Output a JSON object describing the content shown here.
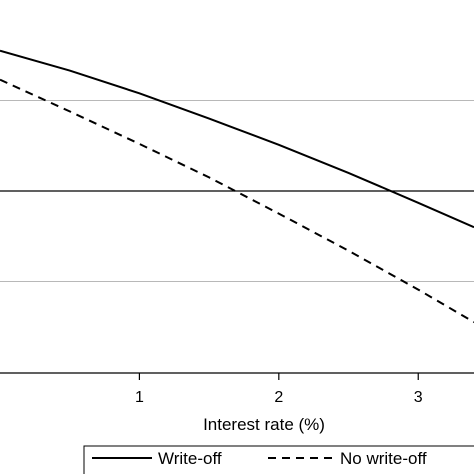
{
  "chart_data": {
    "type": "line",
    "xlabel": "Interest rate (%)",
    "ylabel": "",
    "xlim": [
      0.0,
      3.4
    ],
    "ylim": [
      0.0,
      4.0
    ],
    "x_ticks": [
      1,
      2,
      3
    ],
    "grid": true,
    "gridlines_y": [
      1.0,
      2.0,
      3.0
    ],
    "emphasized_gridline_y": 2.0,
    "legend_position": "bottom",
    "series": [
      {
        "name": "Write-off",
        "style": "solid",
        "x": [
          0.0,
          0.5,
          1.0,
          1.5,
          2.0,
          2.5,
          3.0,
          3.4
        ],
        "y": [
          3.55,
          3.33,
          3.08,
          2.8,
          2.51,
          2.2,
          1.87,
          1.6
        ]
      },
      {
        "name": "No write-off",
        "style": "dashed",
        "x": [
          0.0,
          0.5,
          1.0,
          1.5,
          2.0,
          2.5,
          3.0,
          3.4
        ],
        "y": [
          3.23,
          2.88,
          2.52,
          2.15,
          1.75,
          1.34,
          0.91,
          0.55
        ]
      }
    ],
    "colors": {
      "line": "#000000",
      "grid": "#b8b8b8",
      "axis": "#000000"
    }
  }
}
